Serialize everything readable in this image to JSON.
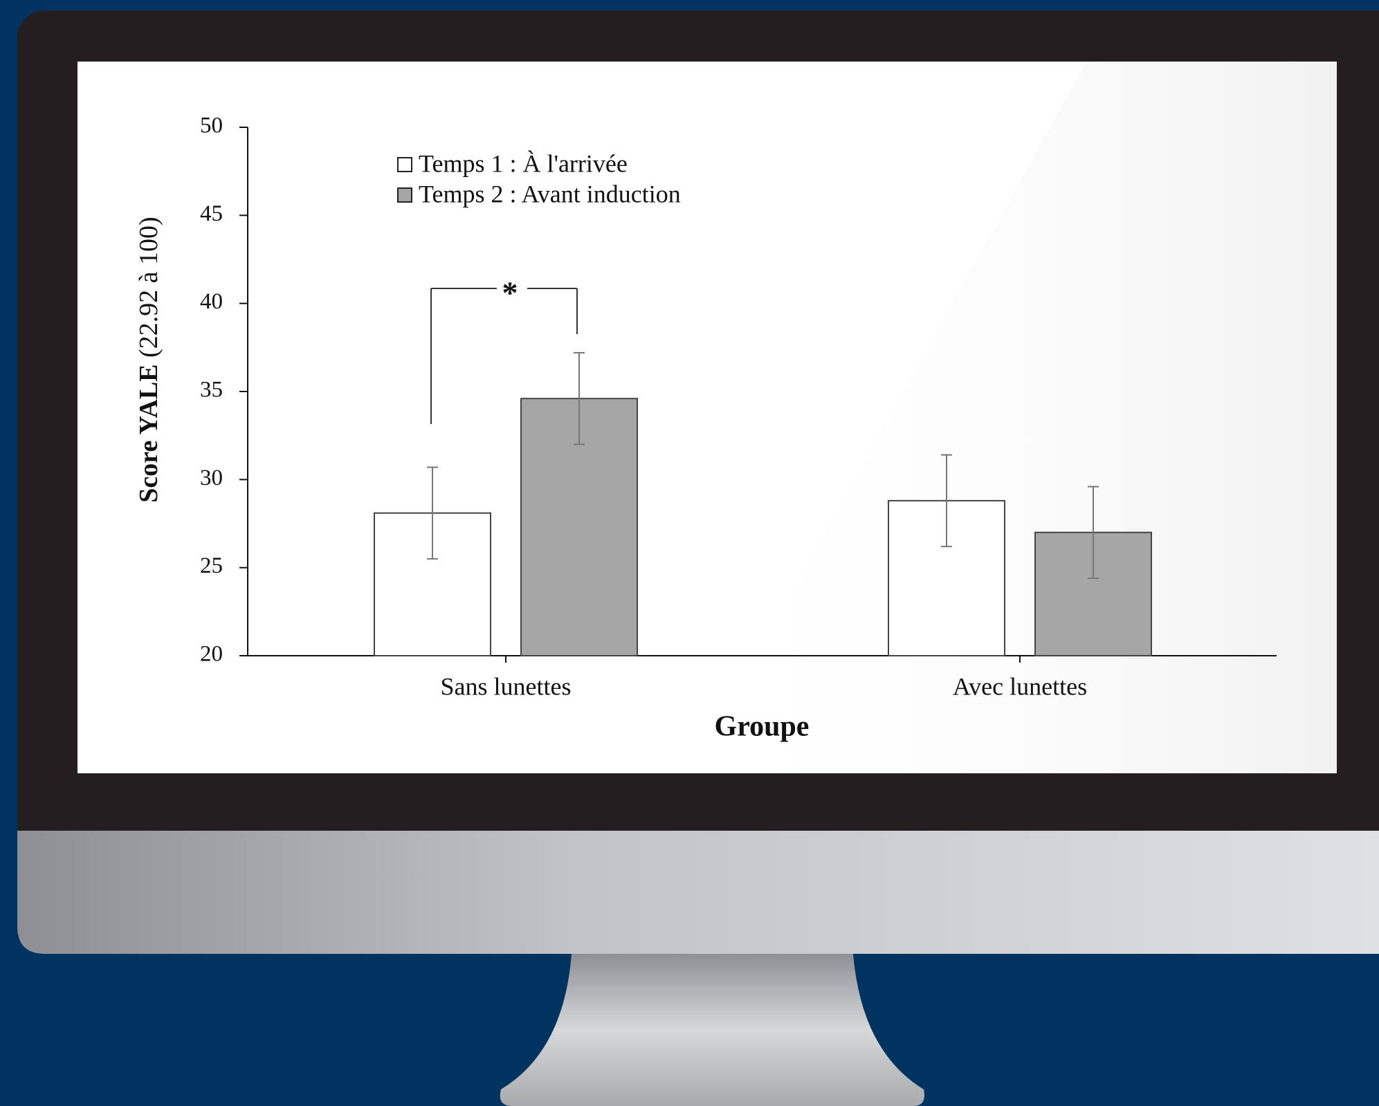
{
  "chart_data": {
    "type": "bar",
    "y_label": [
      "Score YALE",
      "(22.92 à 100)"
    ],
    "x_label": "Groupe",
    "categories": [
      "Sans lunettes",
      "Avec lunettes"
    ],
    "series": [
      {
        "name": "Temps 1 : À l'arrivée",
        "color": "#ffffff",
        "values": [
          28.1,
          28.8
        ],
        "errors": [
          2.6,
          2.6
        ]
      },
      {
        "name": "Temps 2 : Avant induction",
        "color": "#a6a6a6",
        "values": [
          34.6,
          27.0
        ],
        "errors": [
          2.6,
          2.6
        ]
      }
    ],
    "annotations": [
      "*"
    ],
    "ylim": [
      20,
      50
    ],
    "yticks": [
      20,
      25,
      30,
      35,
      40,
      45,
      50
    ]
  }
}
